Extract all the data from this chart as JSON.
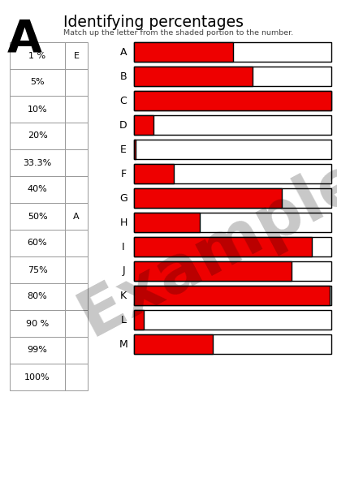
{
  "title": "Identifying percentages",
  "subtitle": "Match up the letter from the shaded portion to the number.",
  "section_label": "A",
  "table_percentages": [
    "1 %",
    "5%",
    "10%",
    "20%",
    "33.3%",
    "40%",
    "50%",
    "60%",
    "75%",
    "80%",
    "90 %",
    "99%",
    "100%"
  ],
  "table_answers": [
    "E",
    "",
    "",
    "",
    "",
    "",
    "A",
    "",
    "",
    "",
    "",
    "",
    ""
  ],
  "bar_labels": [
    "A",
    "B",
    "C",
    "D",
    "E",
    "F",
    "G",
    "H",
    "I",
    "J",
    "K",
    "L",
    "M"
  ],
  "bar_values": [
    0.5,
    0.6,
    1.0,
    0.1,
    0.01,
    0.2,
    0.75,
    0.333,
    0.9,
    0.8,
    0.99,
    0.05,
    0.4
  ],
  "bar_color": "#ee0000",
  "bar_empty_color": "#ffffff",
  "bar_border_color": "#000000",
  "background_color": "#ffffff",
  "example_text": "Example",
  "example_alpha": 0.22
}
